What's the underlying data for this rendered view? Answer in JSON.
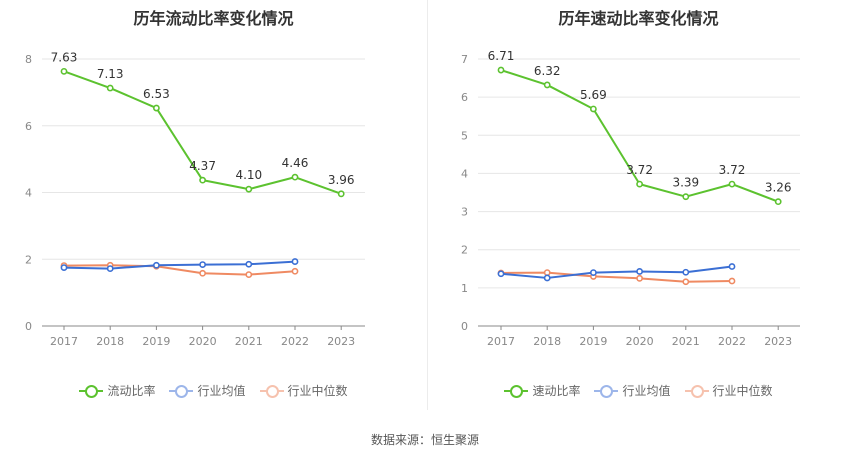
{
  "chart_data": [
    {
      "type": "line",
      "title": "历年流动比率变化情况",
      "categories": [
        "2017",
        "2018",
        "2019",
        "2020",
        "2021",
        "2022",
        "2023"
      ],
      "ylim": [
        0,
        8
      ],
      "yticks": [
        0,
        2,
        4,
        6,
        8
      ],
      "grid": true,
      "legend_position": "bottom",
      "series": [
        {
          "name": "流动比率",
          "color": "#5cc22f",
          "labeled": true,
          "values": [
            7.63,
            7.13,
            6.53,
            4.37,
            4.1,
            4.46,
            3.96
          ],
          "labels": [
            "7.63",
            "7.13",
            "6.53",
            "4.37",
            "4.10",
            "4.46",
            "3.96"
          ]
        },
        {
          "name": "行业均值",
          "color": "#3b6fd4",
          "labeled": false,
          "values": [
            1.75,
            1.72,
            1.82,
            1.84,
            1.85,
            1.93,
            null
          ]
        },
        {
          "name": "行业中位数",
          "color": "#ef8a62",
          "labeled": false,
          "values": [
            1.81,
            1.82,
            1.79,
            1.58,
            1.54,
            1.64,
            null
          ]
        }
      ]
    },
    {
      "type": "line",
      "title": "历年速动比率变化情况",
      "categories": [
        "2017",
        "2018",
        "2019",
        "2020",
        "2021",
        "2022",
        "2023"
      ],
      "ylim": [
        0,
        7
      ],
      "yticks": [
        0,
        1,
        2,
        3,
        4,
        5,
        6,
        7
      ],
      "grid": true,
      "legend_position": "bottom",
      "series": [
        {
          "name": "速动比率",
          "color": "#5cc22f",
          "labeled": true,
          "values": [
            6.71,
            6.32,
            5.69,
            3.72,
            3.39,
            3.72,
            3.26
          ],
          "labels": [
            "6.71",
            "6.32",
            "5.69",
            "3.72",
            "3.39",
            "3.72",
            "3.26"
          ]
        },
        {
          "name": "行业均值",
          "color": "#3b6fd4",
          "labeled": false,
          "values": [
            1.37,
            1.26,
            1.4,
            1.43,
            1.41,
            1.56,
            null
          ]
        },
        {
          "name": "行业中位数",
          "color": "#ef8a62",
          "labeled": false,
          "values": [
            1.39,
            1.4,
            1.3,
            1.25,
            1.16,
            1.18,
            null
          ]
        }
      ]
    }
  ],
  "legend_colors": {
    "流动比率": {
      "line": "#5cc22f",
      "dot": "#5cc22f"
    },
    "速动比率": {
      "line": "#5cc22f",
      "dot": "#5cc22f"
    },
    "行业均值": {
      "line": "#9db6ea",
      "dot": "#9db6ea"
    },
    "行业中位数": {
      "line": "#f6c2ae",
      "dot": "#f6c2ae"
    }
  },
  "footer": {
    "source": "数据来源：恒生聚源"
  }
}
